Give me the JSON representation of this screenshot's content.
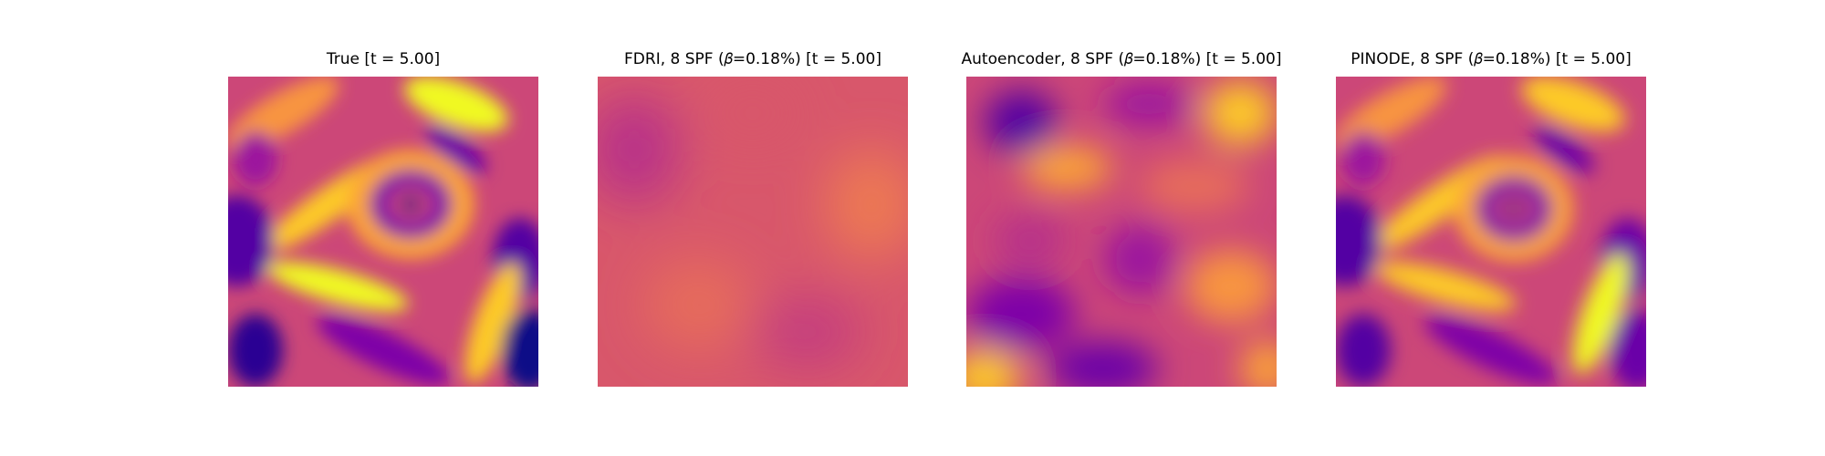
{
  "figure": {
    "colormap": "plasma",
    "panels": [
      {
        "title": "True [t = 5.00]"
      },
      {
        "title": "FDRI, 8 SPF (𝛽=0.18%) [t = 5.00]"
      },
      {
        "title": "Autoencoder, 8 SPF (𝛽=0.18%) [t = 5.00]"
      },
      {
        "title": "PINODE, 8 SPF (𝛽=0.18%) [t = 5.00]"
      }
    ]
  }
}
